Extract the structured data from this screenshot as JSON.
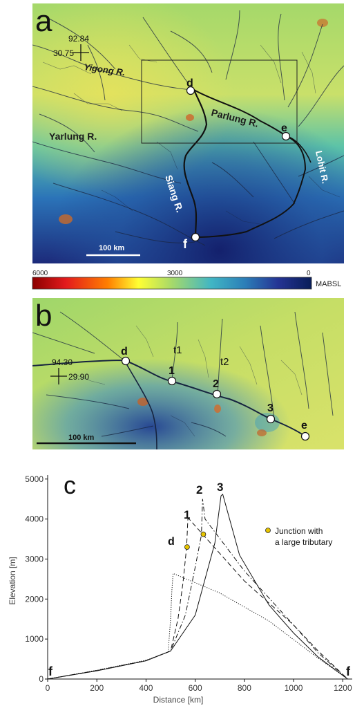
{
  "panel_a": {
    "label": "a",
    "coord_lon": "92.84",
    "coord_lat": "30.75",
    "rivers": {
      "yigong": "Yigong R.",
      "yarlung": "Yarlung R.",
      "parlung": "Parlung R.",
      "siang": "Siang R.",
      "lohit": "Lohit R."
    },
    "points": {
      "d": "d",
      "e": "e",
      "f": "f"
    },
    "scale_label": "100 km"
  },
  "colorbar": {
    "tick_max": "6000",
    "tick_mid": "3000",
    "tick_min": "0",
    "unit": "MABSL",
    "colors": [
      "#8b0000",
      "#e31a1c",
      "#ff7f00",
      "#ffff33",
      "#a6d96a",
      "#41b6c4",
      "#2c7fb8",
      "#253494",
      "#081d58"
    ]
  },
  "panel_b": {
    "label": "b",
    "coord_lon": "94.30",
    "coord_lat": "29.90",
    "tributaries": {
      "t1": "t1",
      "t2": "t2"
    },
    "points": {
      "d": "d",
      "p1": "1",
      "p2": "2",
      "p3": "3",
      "e": "e"
    },
    "scale_label": "100 km"
  },
  "panel_c": {
    "label": "c",
    "legend_text_1": "Junction with",
    "legend_text_2": "a large tributary",
    "profile_labels": {
      "d": "d",
      "p1": "1",
      "p2": "2",
      "p3": "3"
    },
    "endpoint_left": "f",
    "endpoint_right": "f"
  },
  "chart_data": {
    "type": "line",
    "title": "",
    "xlabel": "Distance [km]",
    "ylabel": "Elevation [m]",
    "xlim": [
      0,
      1230
    ],
    "ylim": [
      0,
      5100
    ],
    "xticks": [
      0,
      200,
      400,
      600,
      800,
      1000,
      1200
    ],
    "yticks": [
      0,
      1000,
      2000,
      3000,
      4000,
      5000
    ],
    "series": [
      {
        "name": "d",
        "style": "dotted",
        "points": [
          [
            0,
            0
          ],
          [
            200,
            220
          ],
          [
            400,
            470
          ],
          [
            490,
            680
          ],
          [
            500,
            1500
          ],
          [
            505,
            2200
          ],
          [
            510,
            2640
          ],
          [
            700,
            2150
          ],
          [
            900,
            1450
          ],
          [
            1100,
            520
          ],
          [
            1220,
            0
          ]
        ]
      },
      {
        "name": "1",
        "style": "dashed",
        "points": [
          [
            0,
            0
          ],
          [
            200,
            215
          ],
          [
            400,
            460
          ],
          [
            500,
            700
          ],
          [
            530,
            1500
          ],
          [
            550,
            2400
          ],
          [
            565,
            3300
          ],
          [
            570,
            4000
          ],
          [
            575,
            4000
          ],
          [
            800,
            2450
          ],
          [
            1000,
            1350
          ],
          [
            1100,
            700
          ],
          [
            1220,
            0
          ]
        ]
      },
      {
        "name": "2",
        "style": "dashdot",
        "points": [
          [
            0,
            0
          ],
          [
            200,
            210
          ],
          [
            400,
            460
          ],
          [
            500,
            700
          ],
          [
            560,
            1600
          ],
          [
            600,
            2800
          ],
          [
            625,
            3600
          ],
          [
            630,
            4500
          ],
          [
            640,
            4000
          ],
          [
            800,
            2700
          ],
          [
            1000,
            1350
          ],
          [
            1100,
            650
          ],
          [
            1220,
            0
          ]
        ]
      },
      {
        "name": "3",
        "style": "solid",
        "points": [
          [
            0,
            0
          ],
          [
            200,
            205
          ],
          [
            400,
            455
          ],
          [
            500,
            700
          ],
          [
            600,
            1600
          ],
          [
            680,
            3400
          ],
          [
            705,
            4580
          ],
          [
            712,
            4620
          ],
          [
            780,
            3100
          ],
          [
            900,
            1850
          ],
          [
            1000,
            1150
          ],
          [
            1100,
            550
          ],
          [
            1220,
            0
          ]
        ]
      }
    ],
    "junctions": [
      [
        567,
        3300
      ],
      [
        633,
        3620
      ]
    ]
  }
}
